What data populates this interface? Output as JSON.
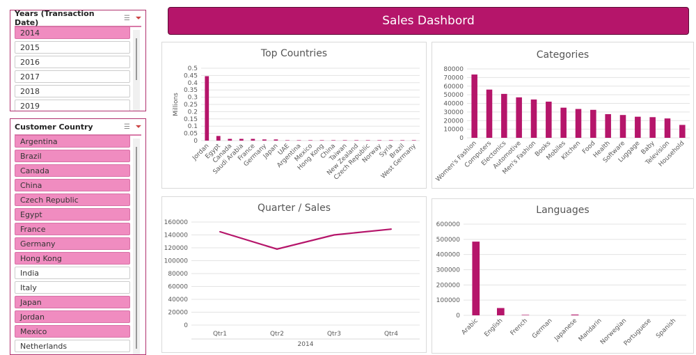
{
  "title": "Sales Dashbord",
  "colors": {
    "accent": "#b5156a",
    "selected": "#f08cc0"
  },
  "slicers": [
    {
      "title": "Years (Transaction Date)",
      "icons": [
        "multi-select-icon",
        "clear-filter-icon"
      ],
      "items": [
        {
          "label": "2014",
          "selected": true
        },
        {
          "label": "2015",
          "selected": false
        },
        {
          "label": "2016",
          "selected": false
        },
        {
          "label": "2017",
          "selected": false
        },
        {
          "label": "2018",
          "selected": false
        },
        {
          "label": "2019",
          "selected": false
        }
      ]
    },
    {
      "title": "Customer Country",
      "icons": [
        "multi-select-icon",
        "clear-filter-icon"
      ],
      "items": [
        {
          "label": "Argentina",
          "selected": true
        },
        {
          "label": "Brazil",
          "selected": true
        },
        {
          "label": "Canada",
          "selected": true
        },
        {
          "label": "China",
          "selected": true
        },
        {
          "label": "Czech Republic",
          "selected": true
        },
        {
          "label": "Egypt",
          "selected": true
        },
        {
          "label": "France",
          "selected": true
        },
        {
          "label": "Germany",
          "selected": true
        },
        {
          "label": "Hong Kong",
          "selected": true
        },
        {
          "label": "India",
          "selected": false
        },
        {
          "label": "Italy",
          "selected": false
        },
        {
          "label": "Japan",
          "selected": true
        },
        {
          "label": "Jordan",
          "selected": true
        },
        {
          "label": "Mexico",
          "selected": true
        },
        {
          "label": "Netherlands",
          "selected": false
        }
      ]
    }
  ],
  "chart_data": [
    {
      "type": "bar",
      "title": "Top Countries",
      "ylabel": "Millions",
      "ylim": [
        0,
        0.5
      ],
      "ystep": 0.05,
      "yticks": [
        "0",
        "0.05",
        "0.1",
        "0.15",
        "0.2",
        "0.25",
        "0.3",
        "0.35",
        "0.4",
        "0.45",
        "0.5"
      ],
      "grid": true,
      "categories": [
        "Jordan",
        "Egypt",
        "Canada",
        "Saudi Arabia",
        "France",
        "Germany",
        "Japan",
        "UAE",
        "Argentina",
        "Mexico",
        "Hong Kong",
        "China",
        "Taiwan",
        "New Zealand",
        "Czech Republic",
        "Norway",
        "Syria",
        "Brazil",
        "West Germany"
      ],
      "values": [
        0.445,
        0.032,
        0.012,
        0.012,
        0.012,
        0.008,
        0.008,
        0.003,
        0.003,
        0.003,
        0.003,
        0.003,
        0.003,
        0.003,
        0.003,
        0.003,
        0.003,
        0.003,
        0.003
      ]
    },
    {
      "type": "bar",
      "title": "Categories",
      "ylim": [
        0,
        80000
      ],
      "yticks": [
        "0",
        "10000",
        "20000",
        "30000",
        "40000",
        "50000",
        "60000",
        "70000",
        "80000"
      ],
      "grid": true,
      "categories": [
        "Women's Fashion",
        "Computers",
        "Electonics",
        "Automotive",
        "Men's Fashion",
        "Books",
        "Mobiles",
        "Kitchen",
        "Food",
        "Health",
        "Software",
        "Luggage",
        "Baby",
        "Television",
        "Household"
      ],
      "values": [
        73500,
        56000,
        51000,
        47000,
        44500,
        42000,
        35000,
        33500,
        32500,
        27500,
        26500,
        24500,
        24000,
        22500,
        15000
      ]
    },
    {
      "type": "line",
      "title": "Quarter / Sales",
      "ylim": [
        0,
        160000
      ],
      "yticks": [
        "0",
        "20000",
        "40000",
        "60000",
        "80000",
        "100000",
        "120000",
        "140000",
        "160000"
      ],
      "grid": true,
      "categories": [
        "Qtr1",
        "Qtr2",
        "Qtr3",
        "Qtr4"
      ],
      "xgroup": "2014",
      "values": [
        145000,
        118000,
        140000,
        149000
      ]
    },
    {
      "type": "bar",
      "title": "Languages",
      "ylim": [
        0,
        600000
      ],
      "yticks": [
        "0",
        "100000",
        "200000",
        "300000",
        "400000",
        "500000",
        "600000"
      ],
      "grid": true,
      "categories": [
        "Arabic",
        "English",
        "French",
        "German",
        "Japanese",
        "Mandarin",
        "Norwegian",
        "Portuguese",
        "Spanish"
      ],
      "values": [
        485000,
        48000,
        3000,
        0,
        5000,
        0,
        0,
        0,
        0
      ]
    }
  ]
}
